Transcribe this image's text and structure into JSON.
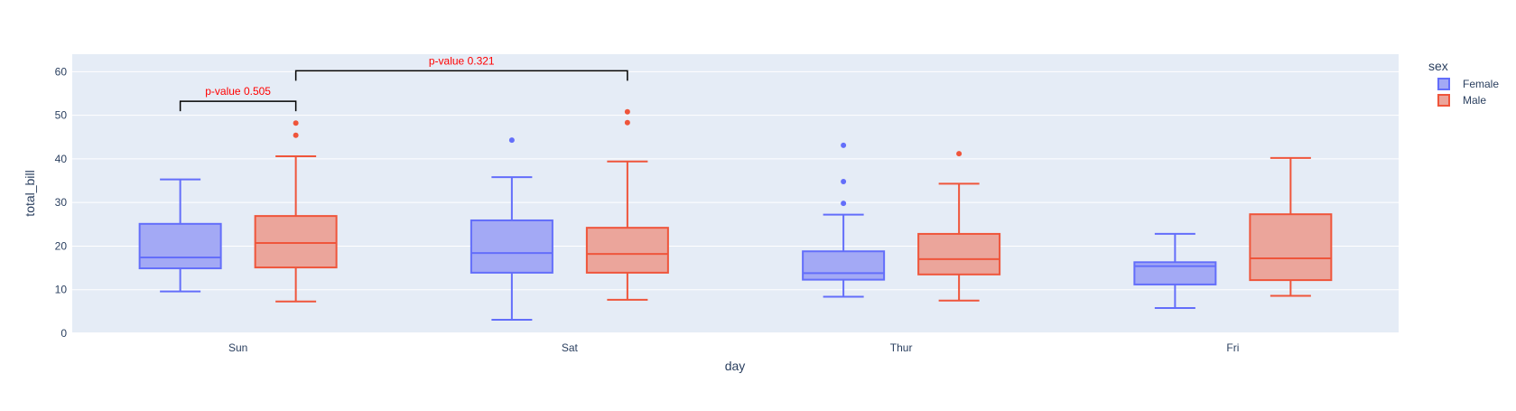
{
  "chart_data": {
    "type": "box",
    "xlabel": "day",
    "ylabel": "total_bill",
    "ylim": [
      0,
      64
    ],
    "yticks": [
      0,
      10,
      20,
      30,
      40,
      50,
      60
    ],
    "categories": [
      "Sun",
      "Sat",
      "Thur",
      "Fri"
    ],
    "grid": true,
    "legend": {
      "title": "sex",
      "position": "top-right"
    },
    "series": [
      {
        "name": "Female",
        "line_color": "#636efa",
        "fill_color": "#a3a9f5",
        "boxes": [
          {
            "category": "Sun",
            "min": 9.6,
            "q1": 14.9,
            "median": 17.4,
            "q3": 25.1,
            "max": 35.3,
            "outliers": []
          },
          {
            "category": "Sat",
            "min": 3.1,
            "q1": 13.9,
            "median": 18.4,
            "q3": 25.9,
            "max": 35.8,
            "outliers": [
              44.3
            ]
          },
          {
            "category": "Thur",
            "min": 8.4,
            "q1": 12.3,
            "median": 13.8,
            "q3": 18.8,
            "max": 27.2,
            "outliers": [
              29.8,
              34.8,
              43.1
            ]
          },
          {
            "category": "Fri",
            "min": 5.8,
            "q1": 11.2,
            "median": 15.4,
            "q3": 16.3,
            "max": 22.8,
            "outliers": []
          }
        ]
      },
      {
        "name": "Male",
        "line_color": "#ef553b",
        "fill_color": "#eba59b",
        "boxes": [
          {
            "category": "Sun",
            "min": 7.3,
            "q1": 15.1,
            "median": 20.7,
            "q3": 26.9,
            "max": 40.6,
            "outliers": [
              45.4,
              48.2
            ]
          },
          {
            "category": "Sat",
            "min": 7.7,
            "q1": 13.9,
            "median": 18.2,
            "q3": 24.2,
            "max": 39.4,
            "outliers": [
              48.3,
              50.8
            ]
          },
          {
            "category": "Thur",
            "min": 7.5,
            "q1": 13.5,
            "median": 17.0,
            "q3": 22.8,
            "max": 34.3,
            "outliers": [
              41.2
            ]
          },
          {
            "category": "Fri",
            "min": 8.6,
            "q1": 12.2,
            "median": 17.2,
            "q3": 27.3,
            "max": 40.2,
            "outliers": []
          }
        ]
      }
    ],
    "annotations": [
      {
        "text": "p-value 0.505",
        "from_category": "Sun",
        "from_series": "Female",
        "to_category": "Sun",
        "to_series": "Male",
        "bracket_y": 53.2,
        "color": "#ff0000"
      },
      {
        "text": "p-value 0.321",
        "from_category": "Sun",
        "from_series": "Male",
        "to_category": "Sat",
        "to_series": "Male",
        "bracket_y": 60.2,
        "color": "#ff0000"
      }
    ]
  }
}
